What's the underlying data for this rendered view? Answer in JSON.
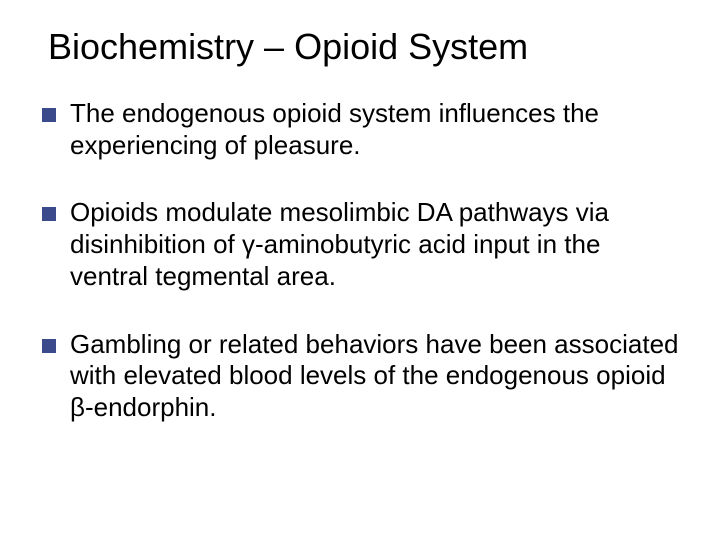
{
  "slide": {
    "title": "Biochemistry – Opioid System",
    "title_color": "#000000",
    "title_fontsize": 36,
    "background_color": "#ffffff",
    "bullet_marker_color": "#3a4a8a",
    "bullet_marker_size": 14,
    "body_fontsize": 26,
    "body_color": "#000000",
    "bullets": [
      "The endogenous opioid system influences the experiencing of pleasure.",
      "Opioids modulate mesolimbic DA pathways via disinhibition of γ-aminobutyric acid input in the ventral tegmental area.",
      "Gambling or related behaviors have been associated with elevated blood levels of the endogenous opioid β-endorphin."
    ]
  }
}
